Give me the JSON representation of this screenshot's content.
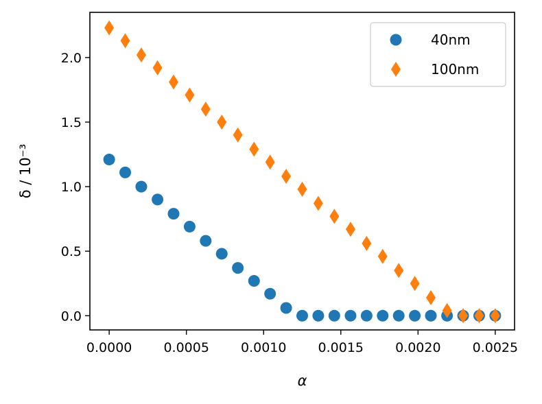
{
  "chart_data": {
    "type": "scatter",
    "title": "",
    "xlabel": "α",
    "ylabel": "δ / 10⁻³",
    "xlim": [
      -0.000125,
      0.002625
    ],
    "ylim": [
      -0.11,
      2.35
    ],
    "xticks": [
      0.0,
      0.0005,
      0.001,
      0.0015,
      0.002,
      0.0025
    ],
    "xtick_labels": [
      "0.0000",
      "0.0005",
      "0.0010",
      "0.0015",
      "0.0020",
      "0.0025"
    ],
    "yticks": [
      0.0,
      0.5,
      1.0,
      1.5,
      2.0
    ],
    "ytick_labels": [
      "0.0",
      "0.5",
      "1.0",
      "1.5",
      "2.0"
    ],
    "grid": false,
    "legend_position": "top-right",
    "series": [
      {
        "name": "40nm",
        "marker": "circle",
        "color": "#1f77b4",
        "x": [
          0.0,
          0.000104,
          0.000208,
          0.000313,
          0.000417,
          0.000521,
          0.000625,
          0.000729,
          0.000833,
          0.000938,
          0.001042,
          0.001146,
          0.00125,
          0.001354,
          0.001458,
          0.001563,
          0.001667,
          0.001771,
          0.001875,
          0.001979,
          0.002083,
          0.002188,
          0.002292,
          0.002396,
          0.0025
        ],
        "y": [
          1.21,
          1.11,
          1.0,
          0.9,
          0.79,
          0.69,
          0.58,
          0.48,
          0.37,
          0.27,
          0.17,
          0.06,
          0.0,
          0.0,
          0.0,
          0.0,
          0.0,
          0.0,
          0.0,
          0.0,
          0.0,
          0.0,
          0.0,
          0.0,
          0.0
        ]
      },
      {
        "name": "100nm",
        "marker": "thin_diamond",
        "color": "#ff7f0e",
        "x": [
          0.0,
          0.000104,
          0.000208,
          0.000313,
          0.000417,
          0.000521,
          0.000625,
          0.000729,
          0.000833,
          0.000938,
          0.001042,
          0.001146,
          0.00125,
          0.001354,
          0.001458,
          0.001563,
          0.001667,
          0.001771,
          0.001875,
          0.001979,
          0.002083,
          0.002188,
          0.002292,
          0.002396,
          0.0025
        ],
        "y": [
          2.23,
          2.13,
          2.02,
          1.92,
          1.81,
          1.71,
          1.6,
          1.5,
          1.4,
          1.29,
          1.19,
          1.08,
          0.98,
          0.87,
          0.77,
          0.67,
          0.56,
          0.46,
          0.35,
          0.25,
          0.14,
          0.04,
          0.0,
          0.0,
          0.0
        ]
      }
    ]
  }
}
